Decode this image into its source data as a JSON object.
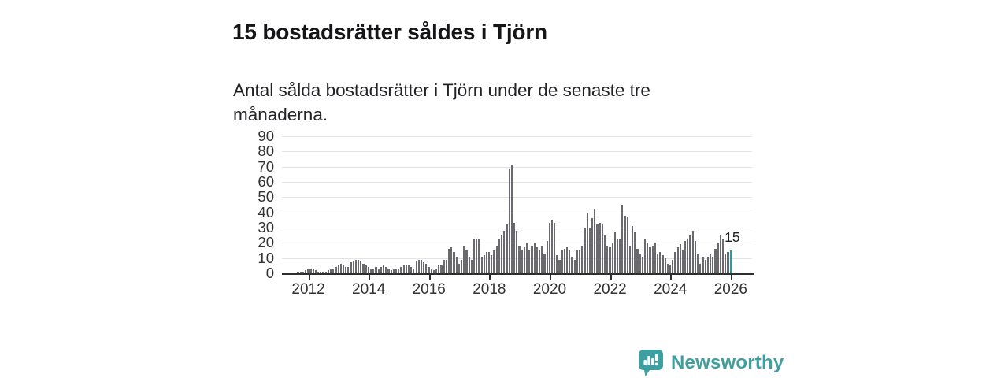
{
  "header": {
    "title": "15 bostadsrätter såldes i Tjörn",
    "subtitle": "Antal sålda bostadsrätter i Tjörn under de senaste tre månaderna."
  },
  "annotation": {
    "label": "15"
  },
  "branding": {
    "name": "Newsworthy",
    "icon": "bar-chart-speech-bubble-icon",
    "color": "#3f9fa0"
  },
  "colors": {
    "bar": "#69696e",
    "highlight": "#0ca8a2",
    "grid": "#e3e3e3",
    "axis": "#2e2e30",
    "text": "#1d1d1f",
    "axis_text": "#333333"
  },
  "chart_data": {
    "type": "bar",
    "title": "15 bostadsrätter såldes i Tjörn",
    "subtitle": "Antal sålda bostadsrätter i Tjörn under de senaste tre månaderna.",
    "ylabel": "",
    "xlabel": "",
    "frequency": "monthly",
    "x_start": "2011-03",
    "x_axis_end": "2026-09",
    "months_total": 187,
    "ylim": [
      0,
      90
    ],
    "grid": true,
    "y_ticks": [
      0,
      10,
      20,
      30,
      40,
      50,
      60,
      70,
      80,
      90
    ],
    "x_tick_years": [
      2012,
      2014,
      2016,
      2018,
      2020,
      2022,
      2024,
      2026
    ],
    "values": [
      0,
      0,
      0,
      0,
      0,
      0,
      1,
      1,
      1,
      2,
      3,
      3,
      3,
      2,
      1,
      1,
      1,
      1,
      2,
      3,
      3,
      4,
      5,
      6,
      5,
      4,
      4,
      7,
      8,
      9,
      9,
      8,
      6,
      5,
      4,
      3,
      3,
      4,
      3,
      4,
      5,
      4,
      3,
      2,
      3,
      3,
      3,
      4,
      5,
      5,
      5,
      4,
      3,
      8,
      9,
      9,
      7,
      6,
      4,
      3,
      2,
      3,
      5,
      5,
      9,
      9,
      16,
      17,
      14,
      11,
      6,
      9,
      18,
      15,
      11,
      9,
      23,
      22,
      22,
      11,
      12,
      14,
      14,
      12,
      15,
      18,
      22,
      25,
      28,
      32,
      69,
      71,
      33,
      28,
      18,
      15,
      17,
      20,
      15,
      18,
      20,
      17,
      15,
      18,
      13,
      21,
      33,
      35,
      33,
      12,
      9,
      15,
      16,
      17,
      15,
      11,
      9,
      15,
      15,
      18,
      30,
      40,
      30,
      36,
      42,
      32,
      33,
      32,
      25,
      18,
      17,
      20,
      27,
      22,
      22,
      45,
      38,
      37,
      18,
      31,
      27,
      16,
      13,
      11,
      22,
      20,
      17,
      18,
      20,
      13,
      14,
      12,
      10,
      6,
      5,
      9,
      14,
      17,
      19,
      15,
      21,
      23,
      25,
      28,
      21,
      13,
      6,
      11,
      9,
      11,
      13,
      11,
      16,
      20,
      25,
      23,
      13,
      14,
      15
    ],
    "highlight_index": 178,
    "highlight_value": 15,
    "highlight_label": "15",
    "legend": null
  }
}
